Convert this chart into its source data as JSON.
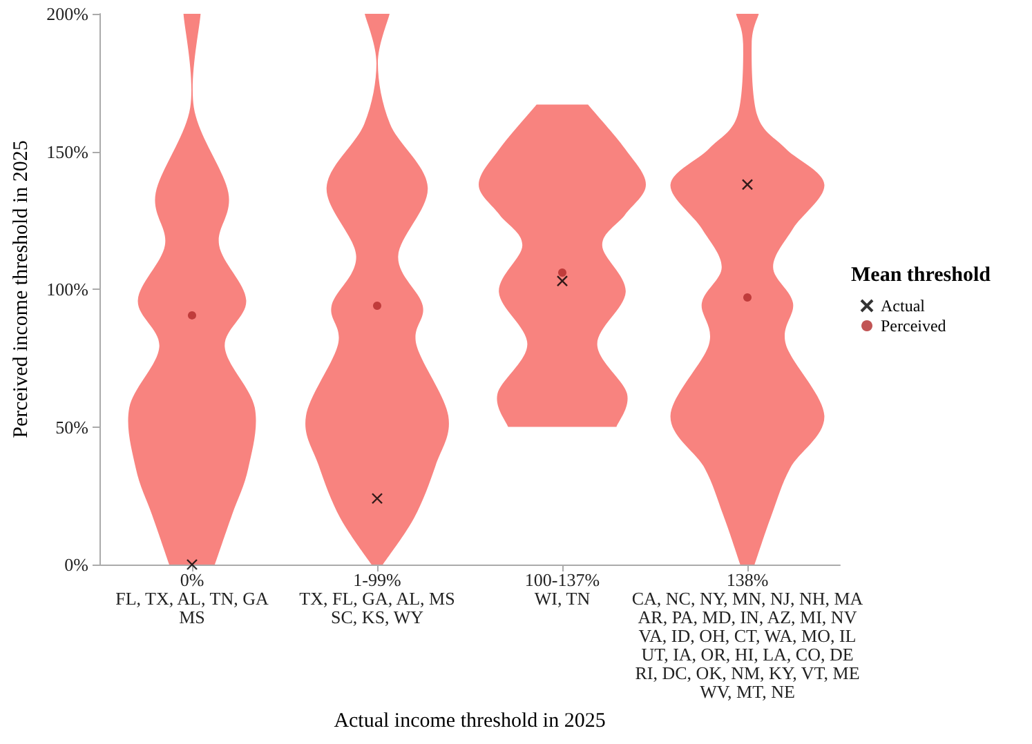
{
  "chart_data": {
    "type": "scatter",
    "xlabel": "Actual income threshold in 2025",
    "ylabel": "Perceived income threshold in 2025",
    "legend_title": "Mean threshold",
    "categories": [
      "0%\nFL, TX, AL, TN, GA\nMS",
      "1-99%\nTX, FL, GA, AL, MS\nSC, KS, WY",
      "100-137%\nWI, TN",
      "138%\nCA, NC, NY, MN, NJ, NH, MA\nAR, PA, MD, IN, AZ, MI, NV\nVA, ID, OH, CT, WA, MO, IL\nUT, IA, OR, HI, LA, CO, DE\nRI, DC, OK, NM, KY, VT, ME\nWV, MT, NE"
    ],
    "ylim": [
      0,
      200
    ],
    "yticks": [
      {
        "value": 0,
        "label": "0%"
      },
      {
        "value": 50,
        "label": "50%"
      },
      {
        "value": 100,
        "label": "100%"
      },
      {
        "value": 150,
        "label": "150%"
      },
      {
        "value": 200,
        "label": "200%"
      }
    ],
    "grid": false,
    "legend": "right",
    "series": [
      {
        "name": "Actual",
        "color": "#000000",
        "marker": "cross",
        "values": [
          0,
          24,
          103,
          138
        ]
      },
      {
        "name": "Perceived",
        "color": "#b22b2b",
        "marker": "circle",
        "values": [
          90.5,
          94,
          106,
          97
        ]
      }
    ]
  }
}
